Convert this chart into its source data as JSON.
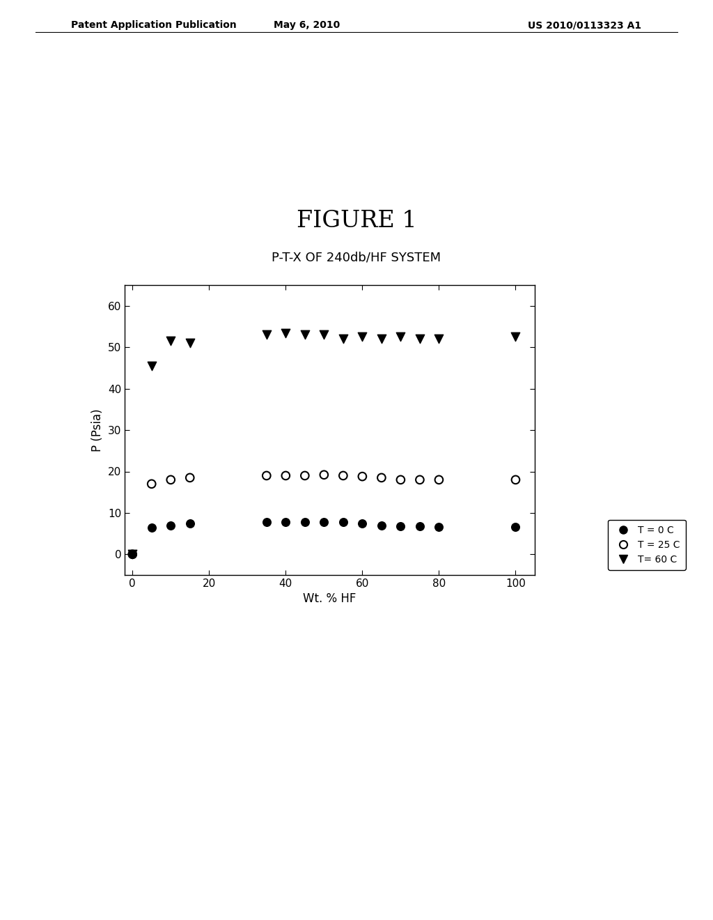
{
  "title_figure": "FIGURE 1",
  "title_chart": "P-T-X OF 240db/HF SYSTEM",
  "xlabel": "Wt. % HF",
  "ylabel": "P (Psia)",
  "xlim": [
    -2,
    105
  ],
  "ylim": [
    -5,
    65
  ],
  "xticks": [
    0,
    20,
    40,
    60,
    80,
    100
  ],
  "yticks": [
    0,
    10,
    20,
    30,
    40,
    50,
    60
  ],
  "header_left": "Patent Application Publication",
  "header_center": "May 6, 2010",
  "header_right": "US 2010/0113323 A1",
  "t0_x": [
    0,
    5,
    10,
    15,
    35,
    40,
    45,
    50,
    55,
    60,
    65,
    70,
    75,
    80,
    100
  ],
  "t0_y": [
    0,
    6.5,
    7.0,
    7.5,
    7.8,
    7.8,
    7.8,
    7.8,
    7.8,
    7.5,
    7.0,
    6.8,
    6.8,
    6.7,
    6.7
  ],
  "t25_x": [
    0,
    5,
    10,
    15,
    35,
    40,
    45,
    50,
    55,
    60,
    65,
    70,
    75,
    80,
    100
  ],
  "t25_y": [
    0,
    17.0,
    18.0,
    18.5,
    19.0,
    19.0,
    19.0,
    19.2,
    19.0,
    18.8,
    18.5,
    18.0,
    18.0,
    18.0,
    18.0
  ],
  "t60_x": [
    0,
    5,
    10,
    15,
    35,
    40,
    45,
    50,
    55,
    60,
    65,
    70,
    75,
    80,
    100
  ],
  "t60_y": [
    0,
    45.5,
    51.5,
    51.0,
    53.0,
    53.5,
    53.0,
    53.0,
    52.0,
    52.5,
    52.0,
    52.5,
    52.0,
    52.0,
    52.5
  ],
  "legend_labels": [
    "T = 0 C",
    "T = 25 C",
    "T= 60 C"
  ],
  "background_color": "#ffffff",
  "marker_size": 70,
  "marker_size_tri": 80
}
